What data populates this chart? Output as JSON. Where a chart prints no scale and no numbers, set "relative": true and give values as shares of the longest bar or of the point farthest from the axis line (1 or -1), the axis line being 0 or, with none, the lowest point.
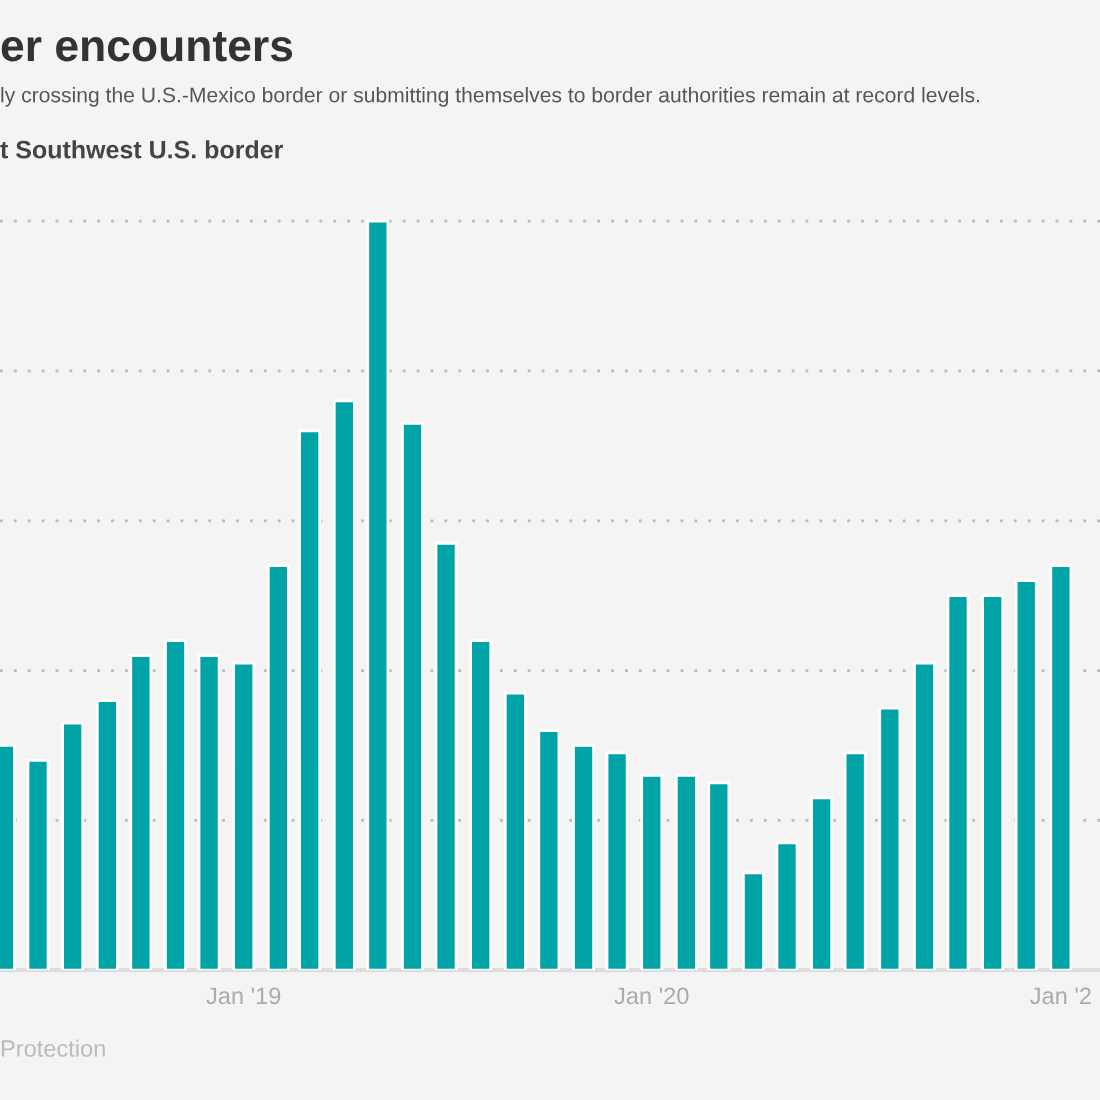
{
  "chart_data": {
    "type": "bar",
    "title": "er encounters",
    "subtitle": "ly crossing the U.S.-Mexico border or submitting themselves to border authorities remain at record levels.",
    "annotations": [
      "t Southwest U.S. border",
      "Protection"
    ],
    "relative": true,
    "x": [
      "2018-06",
      "2018-07",
      "2018-08",
      "2018-09",
      "2018-10",
      "2018-11",
      "2018-12",
      "2019-01",
      "2019-02",
      "2019-03",
      "2019-04",
      "2019-05",
      "2019-06",
      "2019-07",
      "2019-08",
      "2019-09",
      "2019-10",
      "2019-11",
      "2019-12",
      "2020-01",
      "2020-02",
      "2020-03",
      "2020-04",
      "2020-05",
      "2020-06",
      "2020-07",
      "2020-08",
      "2020-09",
      "2020-10",
      "2020-11",
      "2020-12",
      "2021-01"
    ],
    "values": [
      0.3,
      0.28,
      0.33,
      0.36,
      0.42,
      0.44,
      0.42,
      0.41,
      0.54,
      0.72,
      0.76,
      1,
      0.73,
      0.57,
      0.44,
      0.37,
      0.32,
      0.3,
      0.29,
      0.26,
      0.26,
      0.25,
      0.13,
      0.17,
      0.23,
      0.29,
      0.35,
      0.41,
      0.5,
      0.5,
      0.52,
      0.54
    ],
    "color": "#00a4a6",
    "xlim": [
      "2018-05-28",
      "2021-02-05"
    ],
    "xticks": [
      {
        "value": "2019-01",
        "label": "Jan '19"
      },
      {
        "value": "2020-01",
        "label": "Jan '20"
      },
      {
        "value": "2021-01",
        "label": "Jan '2"
      }
    ],
    "grid": "y"
  }
}
